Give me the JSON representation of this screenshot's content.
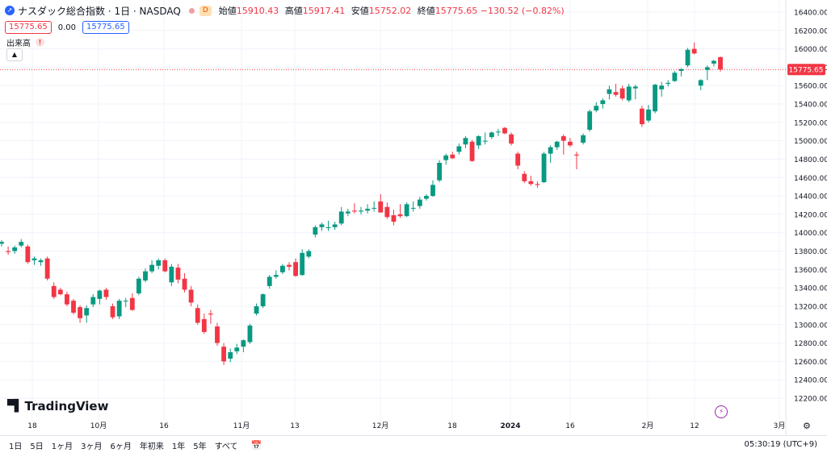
{
  "header": {
    "symbol_title": "ナスダック総合指数 · 1日 · NASDAQ",
    "badge": "D",
    "open_label": "始値",
    "open_value": "15910.43",
    "high_label": "高値",
    "high_value": "15917.41",
    "low_label": "安値",
    "low_value": "15752.02",
    "close_label": "終値",
    "close_value": "15775.65 −130.52 (−0.82%)"
  },
  "quote": {
    "bid": "15775.65",
    "spread": "0.00",
    "ask": "15775.65"
  },
  "volume": {
    "label": "出来高"
  },
  "logo": {
    "text": "TradingView"
  },
  "bottom": {
    "ranges": [
      "1日",
      "5日",
      "1ヶ月",
      "3ヶ月",
      "6ヶ月",
      "年初来",
      "1年",
      "5年",
      "すべて"
    ],
    "clock": "05:30:19 (UTC+9)"
  },
  "colors": {
    "up": "#089981",
    "down": "#f23645",
    "axis_label_bg": "#f23645"
  },
  "chart_data": {
    "type": "candlestick",
    "y_axis": {
      "min": 12200,
      "max": 16400,
      "ticks": [
        12200,
        12400,
        12600,
        12800,
        13000,
        13200,
        13400,
        13600,
        13800,
        14000,
        14200,
        14400,
        14600,
        14800,
        15000,
        15200,
        15400,
        15600,
        15800,
        16000,
        16200,
        16400
      ],
      "tick_labels": [
        "12200.00",
        "12400.00",
        "12600.00",
        "12800.00",
        "13000.00",
        "13200.00",
        "13400.00",
        "13600.00",
        "13800.00",
        "14000.00",
        "14200.00",
        "14400.00",
        "14600.00",
        "14800.00",
        "15000.00",
        "15200.00",
        "15400.00",
        "15600.00",
        "15800.00",
        "16000.00",
        "16200.00",
        "16400.00"
      ]
    },
    "x_axis": {
      "labels": [
        "18",
        "10月",
        "16",
        "11月",
        "13",
        "12月",
        "18",
        "2024",
        "16",
        "2月",
        "12",
        "3月"
      ]
    },
    "last_price": 15775.65,
    "last_price_label": "15775.65",
    "candles": [
      {
        "o": 13880,
        "h": 13920,
        "l": 13850,
        "c": 13900
      },
      {
        "o": 13800,
        "h": 13850,
        "l": 13760,
        "c": 13790
      },
      {
        "o": 13800,
        "h": 13860,
        "l": 13770,
        "c": 13840
      },
      {
        "o": 13860,
        "h": 13930,
        "l": 13840,
        "c": 13900
      },
      {
        "o": 13850,
        "h": 13870,
        "l": 13660,
        "c": 13680
      },
      {
        "o": 13700,
        "h": 13740,
        "l": 13650,
        "c": 13720
      },
      {
        "o": 13680,
        "h": 13720,
        "l": 13640,
        "c": 13700
      },
      {
        "o": 13720,
        "h": 13740,
        "l": 13480,
        "c": 13500
      },
      {
        "o": 13420,
        "h": 13460,
        "l": 13280,
        "c": 13300
      },
      {
        "o": 13380,
        "h": 13400,
        "l": 13320,
        "c": 13330
      },
      {
        "o": 13330,
        "h": 13360,
        "l": 13200,
        "c": 13220
      },
      {
        "o": 13260,
        "h": 13280,
        "l": 13110,
        "c": 13130
      },
      {
        "o": 13190,
        "h": 13210,
        "l": 13020,
        "c": 13070
      },
      {
        "o": 13100,
        "h": 13210,
        "l": 13020,
        "c": 13180
      },
      {
        "o": 13220,
        "h": 13330,
        "l": 13190,
        "c": 13300
      },
      {
        "o": 13280,
        "h": 13380,
        "l": 13220,
        "c": 13370
      },
      {
        "o": 13380,
        "h": 13400,
        "l": 13270,
        "c": 13300
      },
      {
        "o": 13200,
        "h": 13230,
        "l": 13060,
        "c": 13080
      },
      {
        "o": 13090,
        "h": 13280,
        "l": 13060,
        "c": 13260
      },
      {
        "o": 13260,
        "h": 13290,
        "l": 13190,
        "c": 13260
      },
      {
        "o": 13290,
        "h": 13340,
        "l": 13150,
        "c": 13160
      },
      {
        "o": 13340,
        "h": 13520,
        "l": 13320,
        "c": 13500
      },
      {
        "o": 13480,
        "h": 13610,
        "l": 13460,
        "c": 13580
      },
      {
        "o": 13580,
        "h": 13700,
        "l": 13560,
        "c": 13650
      },
      {
        "o": 13640,
        "h": 13720,
        "l": 13600,
        "c": 13700
      },
      {
        "o": 13700,
        "h": 13720,
        "l": 13570,
        "c": 13580
      },
      {
        "o": 13460,
        "h": 13660,
        "l": 13420,
        "c": 13630
      },
      {
        "o": 13620,
        "h": 13660,
        "l": 13450,
        "c": 13490
      },
      {
        "o": 13500,
        "h": 13560,
        "l": 13350,
        "c": 13380
      },
      {
        "o": 13380,
        "h": 13420,
        "l": 13200,
        "c": 13240
      },
      {
        "o": 13180,
        "h": 13220,
        "l": 13000,
        "c": 13020
      },
      {
        "o": 13060,
        "h": 13120,
        "l": 12900,
        "c": 12920
      },
      {
        "o": 13120,
        "h": 13160,
        "l": 13010,
        "c": 13110
      },
      {
        "o": 12980,
        "h": 13020,
        "l": 12770,
        "c": 12800
      },
      {
        "o": 12760,
        "h": 12800,
        "l": 12560,
        "c": 12600
      },
      {
        "o": 12630,
        "h": 12740,
        "l": 12590,
        "c": 12700
      },
      {
        "o": 12710,
        "h": 12790,
        "l": 12680,
        "c": 12750
      },
      {
        "o": 12760,
        "h": 12840,
        "l": 12700,
        "c": 12830
      },
      {
        "o": 12810,
        "h": 13010,
        "l": 12790,
        "c": 12990
      },
      {
        "o": 13120,
        "h": 13230,
        "l": 13100,
        "c": 13200
      },
      {
        "o": 13200,
        "h": 13340,
        "l": 13180,
        "c": 13330
      },
      {
        "o": 13420,
        "h": 13540,
        "l": 13390,
        "c": 13520
      },
      {
        "o": 13520,
        "h": 13590,
        "l": 13500,
        "c": 13540
      },
      {
        "o": 13570,
        "h": 13660,
        "l": 13550,
        "c": 13640
      },
      {
        "o": 13650,
        "h": 13680,
        "l": 13590,
        "c": 13630
      },
      {
        "o": 13680,
        "h": 13720,
        "l": 13520,
        "c": 13530
      },
      {
        "o": 13540,
        "h": 13820,
        "l": 13530,
        "c": 13780
      },
      {
        "o": 13740,
        "h": 13820,
        "l": 13720,
        "c": 13800
      },
      {
        "o": 13980,
        "h": 14080,
        "l": 13950,
        "c": 14060
      },
      {
        "o": 14060,
        "h": 14110,
        "l": 14020,
        "c": 14090
      },
      {
        "o": 14050,
        "h": 14130,
        "l": 14020,
        "c": 14060
      },
      {
        "o": 14060,
        "h": 14120,
        "l": 14030,
        "c": 14090
      },
      {
        "o": 14100,
        "h": 14280,
        "l": 14080,
        "c": 14230
      },
      {
        "o": 14210,
        "h": 14260,
        "l": 14180,
        "c": 14230
      },
      {
        "o": 14240,
        "h": 14320,
        "l": 14210,
        "c": 14230
      },
      {
        "o": 14230,
        "h": 14280,
        "l": 14200,
        "c": 14240
      },
      {
        "o": 14240,
        "h": 14310,
        "l": 14210,
        "c": 14260
      },
      {
        "o": 14270,
        "h": 14340,
        "l": 14230,
        "c": 14270
      },
      {
        "o": 14340,
        "h": 14420,
        "l": 14220,
        "c": 14220
      },
      {
        "o": 14280,
        "h": 14330,
        "l": 14150,
        "c": 14170
      },
      {
        "o": 14190,
        "h": 14250,
        "l": 14080,
        "c": 14120
      },
      {
        "o": 14200,
        "h": 14310,
        "l": 14160,
        "c": 14180
      },
      {
        "o": 14180,
        "h": 14330,
        "l": 14170,
        "c": 14310
      },
      {
        "o": 14270,
        "h": 14340,
        "l": 14230,
        "c": 14270
      },
      {
        "o": 14290,
        "h": 14390,
        "l": 14260,
        "c": 14360
      },
      {
        "o": 14370,
        "h": 14420,
        "l": 14350,
        "c": 14400
      },
      {
        "o": 14400,
        "h": 14570,
        "l": 14390,
        "c": 14520
      },
      {
        "o": 14570,
        "h": 14790,
        "l": 14550,
        "c": 14760
      },
      {
        "o": 14790,
        "h": 14860,
        "l": 14740,
        "c": 14840
      },
      {
        "o": 14850,
        "h": 14880,
        "l": 14800,
        "c": 14810
      },
      {
        "o": 14880,
        "h": 14970,
        "l": 14850,
        "c": 14940
      },
      {
        "o": 14960,
        "h": 15050,
        "l": 14920,
        "c": 15030
      },
      {
        "o": 14990,
        "h": 15010,
        "l": 14770,
        "c": 14780
      },
      {
        "o": 14950,
        "h": 15060,
        "l": 14910,
        "c": 15050
      },
      {
        "o": 15000,
        "h": 15090,
        "l": 14960,
        "c": 15000
      },
      {
        "o": 15040,
        "h": 15100,
        "l": 15020,
        "c": 15090
      },
      {
        "o": 15100,
        "h": 15130,
        "l": 15050,
        "c": 15100
      },
      {
        "o": 15140,
        "h": 15150,
        "l": 15070,
        "c": 15080
      },
      {
        "o": 15070,
        "h": 15090,
        "l": 14950,
        "c": 14970
      },
      {
        "o": 14860,
        "h": 14880,
        "l": 14690,
        "c": 14730
      },
      {
        "o": 14640,
        "h": 14670,
        "l": 14540,
        "c": 14560
      },
      {
        "o": 14560,
        "h": 14620,
        "l": 14510,
        "c": 14530
      },
      {
        "o": 14530,
        "h": 14560,
        "l": 14490,
        "c": 14520
      },
      {
        "o": 14550,
        "h": 14880,
        "l": 14540,
        "c": 14860
      },
      {
        "o": 14860,
        "h": 14950,
        "l": 14760,
        "c": 14930
      },
      {
        "o": 14930,
        "h": 15000,
        "l": 14900,
        "c": 14990
      },
      {
        "o": 15050,
        "h": 15070,
        "l": 14850,
        "c": 15000
      },
      {
        "o": 14990,
        "h": 15030,
        "l": 14930,
        "c": 14950
      },
      {
        "o": 14850,
        "h": 14880,
        "l": 14690,
        "c": 14840
      },
      {
        "o": 14980,
        "h": 15080,
        "l": 14960,
        "c": 15060
      },
      {
        "o": 15120,
        "h": 15340,
        "l": 15100,
        "c": 15320
      },
      {
        "o": 15330,
        "h": 15420,
        "l": 15310,
        "c": 15380
      },
      {
        "o": 15400,
        "h": 15460,
        "l": 15350,
        "c": 15440
      },
      {
        "o": 15510,
        "h": 15600,
        "l": 15450,
        "c": 15560
      },
      {
        "o": 15530,
        "h": 15620,
        "l": 15480,
        "c": 15500
      },
      {
        "o": 15570,
        "h": 15600,
        "l": 15440,
        "c": 15460
      },
      {
        "o": 15440,
        "h": 15620,
        "l": 15420,
        "c": 15590
      },
      {
        "o": 15570,
        "h": 15610,
        "l": 15450,
        "c": 15590
      },
      {
        "o": 15350,
        "h": 15380,
        "l": 15150,
        "c": 15180
      },
      {
        "o": 15220,
        "h": 15390,
        "l": 15200,
        "c": 15340
      },
      {
        "o": 15320,
        "h": 15620,
        "l": 15300,
        "c": 15610
      },
      {
        "o": 15560,
        "h": 15640,
        "l": 15480,
        "c": 15600
      },
      {
        "o": 15620,
        "h": 15660,
        "l": 15590,
        "c": 15630
      },
      {
        "o": 15650,
        "h": 15760,
        "l": 15640,
        "c": 15740
      },
      {
        "o": 15760,
        "h": 15790,
        "l": 15700,
        "c": 15780
      },
      {
        "o": 15820,
        "h": 16010,
        "l": 15800,
        "c": 15990
      },
      {
        "o": 16000,
        "h": 16070,
        "l": 15940,
        "c": 15950
      },
      {
        "o": 15600,
        "h": 15670,
        "l": 15550,
        "c": 15660
      },
      {
        "o": 15770,
        "h": 15820,
        "l": 15660,
        "c": 15800
      },
      {
        "o": 15840,
        "h": 15880,
        "l": 15810,
        "c": 15870
      },
      {
        "o": 15910,
        "h": 15917,
        "l": 15752,
        "c": 15776
      }
    ]
  }
}
